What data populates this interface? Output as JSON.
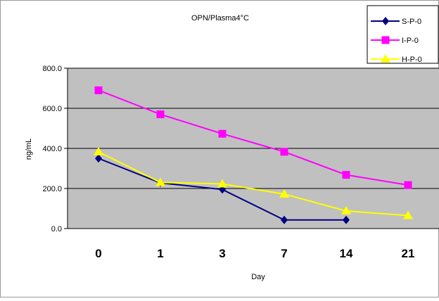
{
  "chart_data": {
    "type": "line",
    "title": "OPN/Plasma4°C",
    "xlabel": "Day",
    "ylabel": "ng/mL",
    "categories": [
      "0",
      "1",
      "3",
      "7",
      "14",
      "21"
    ],
    "ylim": [
      0,
      800
    ],
    "yticks": [
      "0.0",
      "200.0",
      "400.0",
      "600.0",
      "800.0"
    ],
    "grid": true,
    "legend_position": "top-right",
    "series": [
      {
        "name": "S-P-0",
        "color": "#000080",
        "marker": "diamond",
        "values": [
          350,
          228,
          195,
          43,
          43,
          null
        ]
      },
      {
        "name": "I-P-0",
        "color": "#FF00FF",
        "marker": "square",
        "values": [
          690,
          570,
          473,
          383,
          268,
          217
        ]
      },
      {
        "name": "H-P-0",
        "color": "#FFFF00",
        "marker": "triangle",
        "values": [
          383,
          230,
          223,
          172,
          88,
          65
        ]
      }
    ]
  }
}
